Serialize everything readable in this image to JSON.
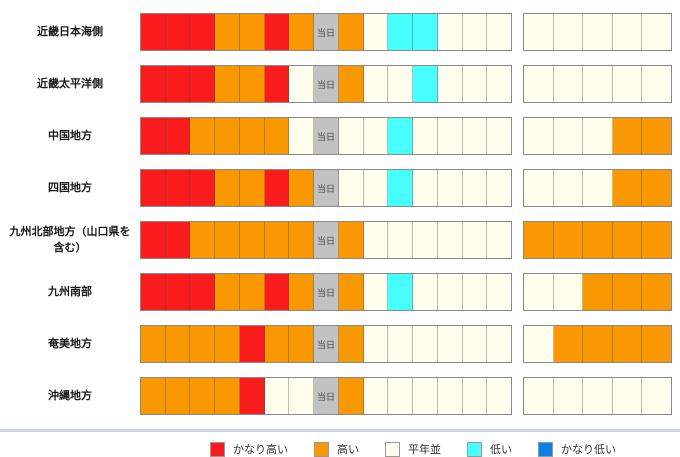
{
  "chart_data": {
    "type": "heatmap",
    "description_note": "Regional temperature outlook strip chart: 15 daily cells (8th = today) plus a separate 5-cell outlook block per region",
    "today_label": "当日",
    "colors": {
      "very_high": "#fa1c1c",
      "high": "#f99800",
      "normal": "#fffdec",
      "low": "#47ffff",
      "very_low": "#0e82e4",
      "today": "#c2c2c2"
    },
    "legend": [
      {
        "key": "very_high",
        "label": "かなり高い"
      },
      {
        "key": "high",
        "label": "高い"
      },
      {
        "key": "normal",
        "label": "平年並"
      },
      {
        "key": "low",
        "label": "低い"
      },
      {
        "key": "very_low",
        "label": "かなり低い"
      }
    ],
    "rows": [
      {
        "region": "近畿日本海側",
        "daily": [
          "very_high",
          "very_high",
          "very_high",
          "high",
          "high",
          "very_high",
          "high",
          "today",
          "high",
          "normal",
          "low",
          "low",
          "normal",
          "normal",
          "normal"
        ],
        "outlook": [
          "normal",
          "normal",
          "normal",
          "normal",
          "normal"
        ]
      },
      {
        "region": "近畿太平洋側",
        "daily": [
          "very_high",
          "very_high",
          "very_high",
          "high",
          "high",
          "very_high",
          "normal",
          "today",
          "high",
          "normal",
          "normal",
          "low",
          "normal",
          "normal",
          "normal"
        ],
        "outlook": [
          "normal",
          "normal",
          "normal",
          "normal",
          "normal"
        ]
      },
      {
        "region": "中国地方",
        "daily": [
          "very_high",
          "very_high",
          "high",
          "high",
          "high",
          "high",
          "normal",
          "today",
          "normal",
          "normal",
          "low",
          "normal",
          "normal",
          "normal",
          "normal"
        ],
        "outlook": [
          "normal",
          "normal",
          "normal",
          "high",
          "high"
        ]
      },
      {
        "region": "四国地方",
        "daily": [
          "very_high",
          "very_high",
          "very_high",
          "high",
          "high",
          "very_high",
          "high",
          "today",
          "normal",
          "normal",
          "low",
          "normal",
          "normal",
          "normal",
          "normal"
        ],
        "outlook": [
          "normal",
          "normal",
          "normal",
          "high",
          "high"
        ]
      },
      {
        "region": "九州北部地方（山口県を含む）",
        "daily": [
          "very_high",
          "very_high",
          "high",
          "high",
          "high",
          "high",
          "high",
          "today",
          "high",
          "normal",
          "normal",
          "normal",
          "normal",
          "normal",
          "normal"
        ],
        "outlook": [
          "high",
          "high",
          "high",
          "high",
          "high"
        ]
      },
      {
        "region": "九州南部",
        "daily": [
          "very_high",
          "very_high",
          "very_high",
          "high",
          "high",
          "very_high",
          "high",
          "today",
          "high",
          "normal",
          "low",
          "normal",
          "normal",
          "normal",
          "normal"
        ],
        "outlook": [
          "normal",
          "normal",
          "high",
          "high",
          "high"
        ]
      },
      {
        "region": "奄美地方",
        "daily": [
          "high",
          "high",
          "high",
          "high",
          "very_high",
          "high",
          "high",
          "today",
          "high",
          "normal",
          "normal",
          "normal",
          "normal",
          "normal",
          "normal"
        ],
        "outlook": [
          "normal",
          "high",
          "high",
          "high",
          "high"
        ]
      },
      {
        "region": "沖縄地方",
        "daily": [
          "high",
          "high",
          "high",
          "high",
          "very_high",
          "normal",
          "normal",
          "today",
          "high",
          "normal",
          "normal",
          "normal",
          "normal",
          "normal",
          "normal"
        ],
        "outlook": [
          "normal",
          "normal",
          "normal",
          "normal",
          "normal"
        ]
      }
    ]
  }
}
